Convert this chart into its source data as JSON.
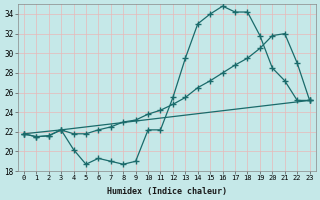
{
  "title": "",
  "xlabel": "Humidex (Indice chaleur)",
  "bg_color": "#c5e8e8",
  "grid_color": "#b0d8d8",
  "line_color": "#1a6b6b",
  "ylim": [
    18,
    35
  ],
  "xlim": [
    -0.5,
    23.5
  ],
  "yticks": [
    18,
    20,
    22,
    24,
    26,
    28,
    30,
    32,
    34
  ],
  "xticks": [
    0,
    1,
    2,
    3,
    4,
    5,
    6,
    7,
    8,
    9,
    10,
    11,
    12,
    13,
    14,
    15,
    16,
    17,
    18,
    19,
    20,
    21,
    22,
    23
  ],
  "line1_x": [
    0,
    1,
    2,
    3,
    4,
    5,
    6,
    7,
    8,
    9,
    10,
    11,
    12,
    13,
    14,
    15,
    16,
    17,
    18,
    19,
    20,
    21,
    22,
    23
  ],
  "line1_y": [
    21.8,
    21.5,
    21.6,
    22.2,
    20.2,
    18.7,
    19.3,
    19.0,
    18.7,
    19.0,
    22.2,
    22.2,
    25.5,
    29.5,
    33.0,
    34.0,
    34.8,
    34.2,
    34.2,
    31.8,
    28.5,
    27.2,
    25.2,
    25.2
  ],
  "line2_x": [
    0,
    1,
    2,
    3,
    4,
    5,
    6,
    7,
    8,
    9,
    10,
    11,
    12,
    13,
    14,
    15,
    16,
    17,
    18,
    19,
    20,
    21,
    22,
    23
  ],
  "line2_y": [
    21.8,
    21.5,
    21.6,
    22.2,
    21.8,
    21.8,
    22.2,
    22.5,
    23.0,
    23.2,
    23.8,
    24.2,
    24.8,
    25.5,
    26.5,
    27.2,
    28.0,
    28.8,
    29.5,
    30.5,
    31.8,
    32.0,
    29.0,
    25.2
  ],
  "line3_x": [
    0,
    3,
    23
  ],
  "line3_y": [
    21.8,
    22.2,
    25.2
  ]
}
